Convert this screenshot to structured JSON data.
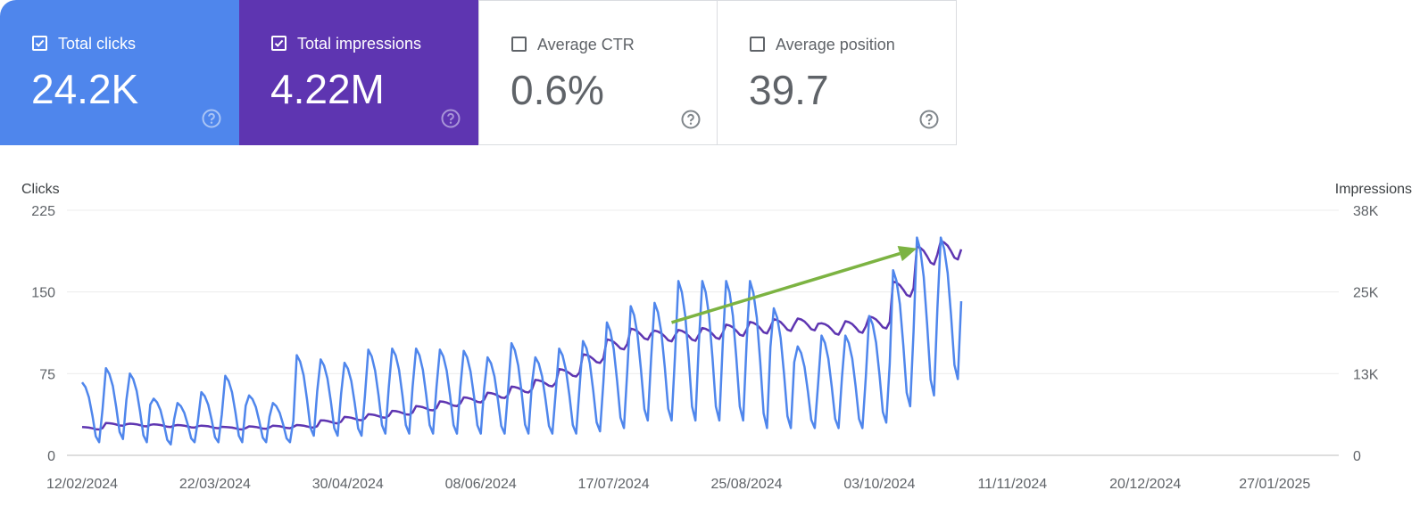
{
  "cards": [
    {
      "label": "Total clicks",
      "value": "24.2K",
      "checked": true,
      "icon": "checkbox-checked-icon",
      "color": "#4f86ec"
    },
    {
      "label": "Total impressions",
      "value": "4.22M",
      "checked": true,
      "icon": "checkbox-checked-icon",
      "color": "#5e35b1"
    },
    {
      "label": "Average CTR",
      "value": "0.6%",
      "checked": false,
      "icon": "checkbox-empty-icon"
    },
    {
      "label": "Average position",
      "value": "39.7",
      "checked": false,
      "icon": "checkbox-empty-icon"
    }
  ],
  "help_icon": "help-circle-icon",
  "chart_data": {
    "type": "line",
    "ylabel_left": "Clicks",
    "ylabel_right": "Impressions",
    "left_axis": {
      "ticks": [
        "225",
        "150",
        "75",
        "0"
      ],
      "range": [
        0,
        225
      ]
    },
    "right_axis": {
      "ticks": [
        "38K",
        "25K",
        "13K",
        "0"
      ],
      "range": [
        0,
        38000
      ]
    },
    "x_ticks": [
      "12/02/2024",
      "22/03/2024",
      "30/04/2024",
      "08/06/2024",
      "17/07/2024",
      "25/08/2024",
      "03/10/2024",
      "11/11/2024",
      "20/12/2024",
      "27/01/2025"
    ],
    "x_range": [
      "12/02/2024",
      "14/02/2025"
    ],
    "grid": true,
    "annotation": {
      "type": "arrow",
      "color": "#7cb342",
      "from": {
        "x": "03/08/2024",
        "clicks": 122
      },
      "to": {
        "x": "14/10/2024",
        "clicks": 190
      }
    },
    "series": [
      {
        "name": "Total clicks",
        "axis": "left",
        "color": "#4f86ec",
        "weekly_peaks": [
          67,
          80,
          75,
          52,
          48,
          58,
          73,
          55,
          48,
          92,
          88,
          85,
          97,
          98,
          98,
          97,
          96,
          90,
          103,
          90,
          98,
          105,
          122,
          137,
          140,
          160,
          160,
          160,
          160,
          135,
          100,
          110,
          110,
          128,
          170,
          200,
          200
        ],
        "weekly_troughs": [
          12,
          15,
          12,
          10,
          12,
          12,
          12,
          12,
          12,
          18,
          18,
          18,
          20,
          20,
          20,
          20,
          20,
          20,
          20,
          20,
          20,
          22,
          25,
          32,
          32,
          32,
          32,
          32,
          25,
          25,
          25,
          25,
          25,
          30,
          45,
          55,
          70
        ]
      },
      {
        "name": "Total impressions",
        "axis": "right",
        "color": "#5e35b1",
        "weekly_trend": [
          4200,
          4800,
          4700,
          4600,
          4500,
          4400,
          4200,
          4300,
          4400,
          4500,
          5200,
          5700,
          6100,
          6600,
          7300,
          8000,
          8600,
          9300,
          10200,
          11200,
          12800,
          15000,
          17200,
          18800,
          18500,
          18600,
          18900,
          19400,
          19800,
          20200,
          20300,
          19600,
          19900,
          20600,
          25800,
          31000,
          31800
        ]
      }
    ]
  }
}
